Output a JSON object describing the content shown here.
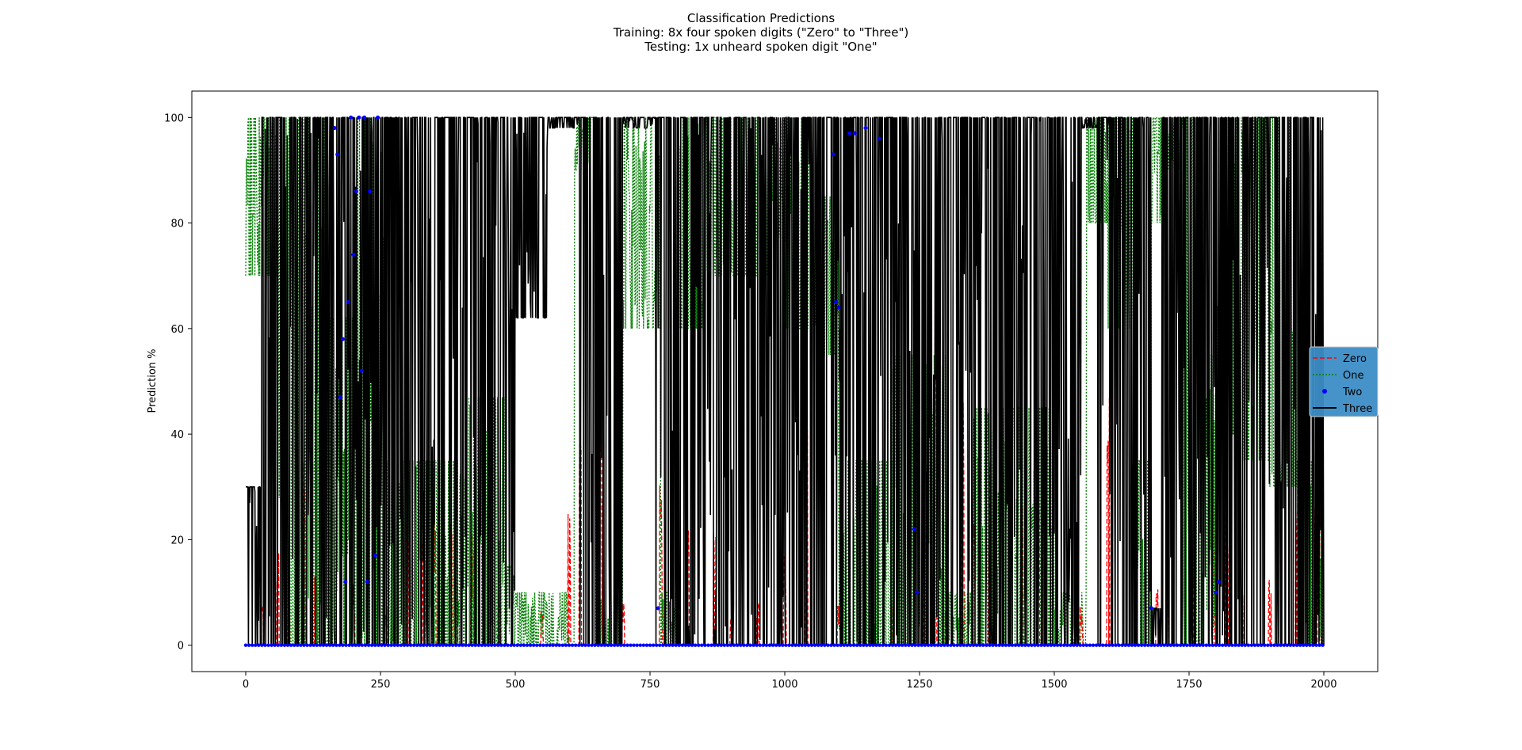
{
  "chart_data": {
    "type": "line",
    "title_lines": [
      "Classification Predictions",
      "Training: 8x four spoken digits (\"Zero\" to \"Three\")",
      "Testing: 1x unheard spoken digit \"One\""
    ],
    "xlabel": "",
    "ylabel": "Prediction %",
    "xlim": [
      -100,
      2100
    ],
    "ylim": [
      -5,
      105
    ],
    "xticks": [
      0,
      250,
      500,
      750,
      1000,
      1250,
      1500,
      1750,
      2000
    ],
    "yticks": [
      0,
      20,
      40,
      60,
      80,
      100
    ],
    "grid": false,
    "legend_position": "center-right",
    "series": [
      {
        "name": "Zero",
        "color": "#ff0000",
        "style": "dashed",
        "spikes": [
          [
            30,
            8
          ],
          [
            60,
            20
          ],
          [
            80,
            18
          ],
          [
            95,
            50
          ],
          [
            110,
            35
          ],
          [
            130,
            18
          ],
          [
            200,
            12
          ],
          [
            260,
            10
          ],
          [
            300,
            28
          ],
          [
            330,
            20
          ],
          [
            350,
            27
          ],
          [
            380,
            24
          ],
          [
            390,
            40
          ],
          [
            420,
            22
          ],
          [
            470,
            12
          ],
          [
            550,
            8
          ],
          [
            600,
            35
          ],
          [
            620,
            79
          ],
          [
            660,
            60
          ],
          [
            700,
            8
          ],
          [
            770,
            34
          ],
          [
            820,
            28
          ],
          [
            870,
            32
          ],
          [
            900,
            8
          ],
          [
            950,
            8
          ],
          [
            1000,
            18
          ],
          [
            1040,
            42
          ],
          [
            1100,
            8
          ],
          [
            1200,
            10
          ],
          [
            1260,
            28
          ],
          [
            1280,
            84
          ],
          [
            1300,
            8
          ],
          [
            1330,
            48
          ],
          [
            1350,
            28
          ],
          [
            1380,
            38
          ],
          [
            1400,
            20
          ],
          [
            1440,
            28
          ],
          [
            1470,
            33
          ],
          [
            1480,
            46
          ],
          [
            1550,
            8
          ],
          [
            1600,
            68
          ],
          [
            1650,
            56
          ],
          [
            1690,
            18
          ],
          [
            1710,
            12
          ],
          [
            1760,
            38
          ],
          [
            1800,
            36
          ],
          [
            1820,
            26
          ],
          [
            1850,
            15
          ],
          [
            1900,
            13
          ],
          [
            1950,
            47
          ],
          [
            1985,
            45
          ],
          [
            1995,
            93
          ]
        ]
      },
      {
        "name": "One",
        "color": "#008000",
        "style": "dotted",
        "segments": [
          [
            0,
            60,
            100,
            70
          ],
          [
            60,
            150,
            100,
            0
          ],
          [
            150,
            200,
            62,
            0
          ],
          [
            200,
            260,
            100,
            0
          ],
          [
            260,
            400,
            35,
            0
          ],
          [
            400,
            480,
            47,
            0
          ],
          [
            480,
            500,
            15,
            0
          ],
          [
            500,
            600,
            10,
            0
          ],
          [
            610,
            650,
            100,
            90
          ],
          [
            650,
            700,
            10,
            0
          ],
          [
            700,
            770,
            100,
            60
          ],
          [
            770,
            800,
            10,
            0
          ],
          [
            800,
            850,
            100,
            60
          ],
          [
            850,
            900,
            100,
            70
          ],
          [
            900,
            1000,
            100,
            70
          ],
          [
            1000,
            1050,
            100,
            60
          ],
          [
            1050,
            1100,
            85,
            55
          ],
          [
            1100,
            1200,
            35,
            0
          ],
          [
            1200,
            1300,
            55,
            0
          ],
          [
            1300,
            1350,
            10,
            0
          ],
          [
            1350,
            1500,
            45,
            0
          ],
          [
            1500,
            1560,
            10,
            0
          ],
          [
            1560,
            1600,
            100,
            80
          ],
          [
            1600,
            1650,
            100,
            60
          ],
          [
            1650,
            1680,
            35,
            0
          ],
          [
            1680,
            1700,
            100,
            80
          ],
          [
            1700,
            1740,
            100,
            90
          ],
          [
            1740,
            1760,
            100,
            0
          ],
          [
            1760,
            1800,
            55,
            0
          ],
          [
            1800,
            1850,
            100,
            40
          ],
          [
            1850,
            1900,
            100,
            35
          ],
          [
            1900,
            1950,
            100,
            30
          ],
          [
            1950,
            2000,
            35,
            0
          ]
        ]
      },
      {
        "name": "Two",
        "color": "#0000ff",
        "style": "dots",
        "points": [
          [
            165,
            98
          ],
          [
            170,
            93
          ],
          [
            175,
            47
          ],
          [
            180,
            58
          ],
          [
            185,
            12
          ],
          [
            190,
            65
          ],
          [
            195,
            100
          ],
          [
            200,
            74
          ],
          [
            205,
            86
          ],
          [
            210,
            100
          ],
          [
            215,
            52
          ],
          [
            220,
            100
          ],
          [
            225,
            12
          ],
          [
            230,
            86
          ],
          [
            240,
            17
          ],
          [
            245,
            100
          ],
          [
            765,
            7
          ],
          [
            1090,
            93
          ],
          [
            1095,
            65
          ],
          [
            1100,
            64
          ],
          [
            1120,
            97
          ],
          [
            1130,
            97
          ],
          [
            1150,
            98
          ],
          [
            1175,
            96
          ],
          [
            1240,
            22
          ],
          [
            1245,
            10
          ],
          [
            1680,
            7
          ],
          [
            1800,
            10
          ],
          [
            1805,
            12
          ]
        ]
      },
      {
        "name": "Three",
        "color": "#000000",
        "style": "solid",
        "segments": [
          [
            0,
            30,
            30,
            0
          ],
          [
            30,
            180,
            100,
            0
          ],
          [
            180,
            260,
            100,
            0
          ],
          [
            260,
            500,
            100,
            0
          ],
          [
            500,
            560,
            100,
            62
          ],
          [
            560,
            620,
            100,
            98
          ],
          [
            620,
            640,
            100,
            0
          ],
          [
            640,
            700,
            100,
            0
          ],
          [
            700,
            760,
            100,
            98
          ],
          [
            760,
            800,
            100,
            0
          ],
          [
            800,
            1000,
            100,
            0
          ],
          [
            1000,
            1080,
            100,
            0
          ],
          [
            1080,
            1200,
            100,
            0
          ],
          [
            1200,
            1300,
            100,
            0
          ],
          [
            1300,
            1360,
            100,
            0
          ],
          [
            1360,
            1550,
            100,
            0
          ],
          [
            1550,
            1580,
            100,
            98
          ],
          [
            1580,
            1680,
            100,
            0
          ],
          [
            1680,
            1700,
            7,
            0
          ],
          [
            1700,
            1800,
            100,
            0
          ],
          [
            1800,
            1850,
            100,
            0
          ],
          [
            1850,
            1900,
            100,
            0
          ],
          [
            1900,
            1960,
            100,
            0
          ],
          [
            1960,
            2000,
            100,
            0
          ]
        ]
      }
    ],
    "baseline": 0
  }
}
